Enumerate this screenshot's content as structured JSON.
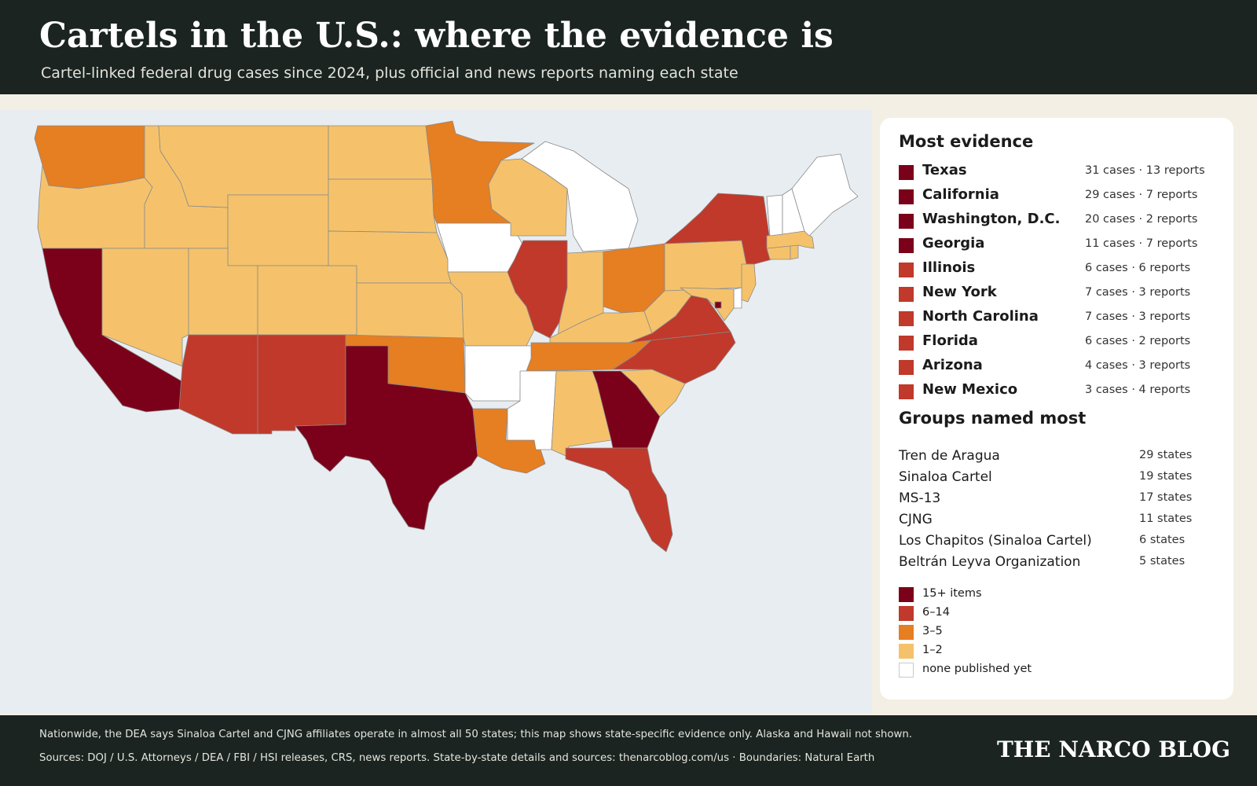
{
  "header": {
    "title": "Cartels in the U.S.: where the evidence is",
    "subtitle": "Cartel-linked federal drug cases since 2024, plus official and news reports naming each state"
  },
  "colors": {
    "tier_15_plus": "#7b0019",
    "tier_6_14": "#c0392b",
    "tier_3_5": "#e67e22",
    "tier_1_2": "#f5c26b",
    "tier_none": "#ffffff",
    "ocean": "#e8edf1"
  },
  "map": {
    "states": [
      {
        "id": "WA",
        "tier": "3_5"
      },
      {
        "id": "OR",
        "tier": "1_2"
      },
      {
        "id": "CA",
        "tier": "15_plus"
      },
      {
        "id": "ID",
        "tier": "1_2"
      },
      {
        "id": "NV",
        "tier": "1_2"
      },
      {
        "id": "MT",
        "tier": "1_2"
      },
      {
        "id": "WY",
        "tier": "1_2"
      },
      {
        "id": "UT",
        "tier": "1_2"
      },
      {
        "id": "CO",
        "tier": "1_2"
      },
      {
        "id": "AZ",
        "tier": "6_14"
      },
      {
        "id": "NM",
        "tier": "6_14"
      },
      {
        "id": "ND",
        "tier": "1_2"
      },
      {
        "id": "SD",
        "tier": "1_2"
      },
      {
        "id": "NE",
        "tier": "1_2"
      },
      {
        "id": "KS",
        "tier": "1_2"
      },
      {
        "id": "OK",
        "tier": "3_5"
      },
      {
        "id": "TX",
        "tier": "15_plus"
      },
      {
        "id": "MN",
        "tier": "3_5"
      },
      {
        "id": "IA",
        "tier": "none"
      },
      {
        "id": "MO",
        "tier": "1_2"
      },
      {
        "id": "AR",
        "tier": "none"
      },
      {
        "id": "LA",
        "tier": "3_5"
      },
      {
        "id": "WI",
        "tier": "1_2"
      },
      {
        "id": "IL",
        "tier": "6_14"
      },
      {
        "id": "MI",
        "tier": "none"
      },
      {
        "id": "IN",
        "tier": "1_2"
      },
      {
        "id": "OH",
        "tier": "3_5"
      },
      {
        "id": "KY",
        "tier": "1_2"
      },
      {
        "id": "TN",
        "tier": "3_5"
      },
      {
        "id": "MS",
        "tier": "none"
      },
      {
        "id": "AL",
        "tier": "1_2"
      },
      {
        "id": "GA",
        "tier": "15_plus"
      },
      {
        "id": "FL",
        "tier": "6_14"
      },
      {
        "id": "SC",
        "tier": "1_2"
      },
      {
        "id": "NC",
        "tier": "6_14"
      },
      {
        "id": "VA",
        "tier": "6_14"
      },
      {
        "id": "WV",
        "tier": "1_2"
      },
      {
        "id": "PA",
        "tier": "1_2"
      },
      {
        "id": "NY",
        "tier": "6_14"
      },
      {
        "id": "NJ",
        "tier": "1_2"
      },
      {
        "id": "DE",
        "tier": "none"
      },
      {
        "id": "MD",
        "tier": "1_2"
      },
      {
        "id": "DC",
        "tier": "15_plus"
      },
      {
        "id": "CT",
        "tier": "1_2"
      },
      {
        "id": "RI",
        "tier": "1_2"
      },
      {
        "id": "MA",
        "tier": "1_2"
      },
      {
        "id": "VT",
        "tier": "none"
      },
      {
        "id": "NH",
        "tier": "none"
      },
      {
        "id": "ME",
        "tier": "none"
      }
    ]
  },
  "panel": {
    "evidence_heading": "Most evidence",
    "evidence": [
      {
        "name": "Texas",
        "value": "31 cases · 13 reports",
        "tier": "15_plus"
      },
      {
        "name": "California",
        "value": "29 cases · 7 reports",
        "tier": "15_plus"
      },
      {
        "name": "Washington, D.C.",
        "value": "20 cases · 2 reports",
        "tier": "15_plus"
      },
      {
        "name": "Georgia",
        "value": "11 cases · 7 reports",
        "tier": "15_plus"
      },
      {
        "name": "Illinois",
        "value": "6 cases · 6 reports",
        "tier": "6_14"
      },
      {
        "name": "New York",
        "value": "7 cases · 3 reports",
        "tier": "6_14"
      },
      {
        "name": "North Carolina",
        "value": "7 cases · 3 reports",
        "tier": "6_14"
      },
      {
        "name": "Florida",
        "value": "6 cases · 2 reports",
        "tier": "6_14"
      },
      {
        "name": "Arizona",
        "value": "4 cases · 3 reports",
        "tier": "6_14"
      },
      {
        "name": "New Mexico",
        "value": "3 cases · 4 reports",
        "tier": "6_14"
      }
    ],
    "groups_heading": "Groups named most",
    "groups": [
      {
        "name": "Tren de Aragua",
        "value": "29 states"
      },
      {
        "name": "Sinaloa Cartel",
        "value": "19 states"
      },
      {
        "name": "MS-13",
        "value": "17 states"
      },
      {
        "name": "CJNG",
        "value": "11 states"
      },
      {
        "name": "Los Chapitos (Sinaloa Cartel)",
        "value": "6 states"
      },
      {
        "name": "Beltrán Leyva Organization",
        "value": "5 states"
      }
    ],
    "legend": [
      {
        "label": "15+ items",
        "tier": "15_plus"
      },
      {
        "label": "6–14",
        "tier": "6_14"
      },
      {
        "label": "3–5",
        "tier": "3_5"
      },
      {
        "label": "1–2",
        "tier": "1_2"
      },
      {
        "label": "none published yet",
        "tier": "none"
      }
    ]
  },
  "footer": {
    "note": "Nationwide, the DEA says Sinaloa Cartel and CJNG affiliates operate in almost all 50 states; this map shows state-specific evidence only. Alaska and Hawaii not shown.",
    "sources": "Sources: DOJ / U.S. Attorneys / DEA / FBI / HSI releases, CRS, news reports. State-by-state details and sources: thenarcoblog.com/us   ·   Boundaries: Natural Earth",
    "brand": "THE NARCO BLOG"
  }
}
